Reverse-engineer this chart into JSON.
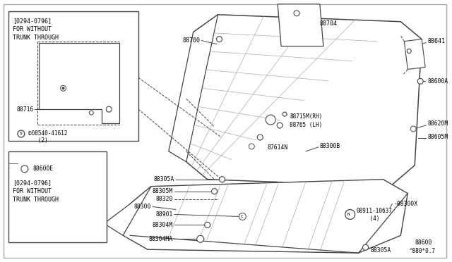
{
  "fig_width": 6.4,
  "fig_height": 3.72,
  "dpi": 100,
  "bg_color": "#ffffff",
  "lc": "#444444",
  "thin": "#666666",
  "watermark": "^880*0.7",
  "box1_label": "[0294-0796]\nFOR WITHOUT\nTRUNK THROUGH",
  "box2_label": "[0294-0796]\nFOR WITHOUT\nTRUNK THROUGH"
}
